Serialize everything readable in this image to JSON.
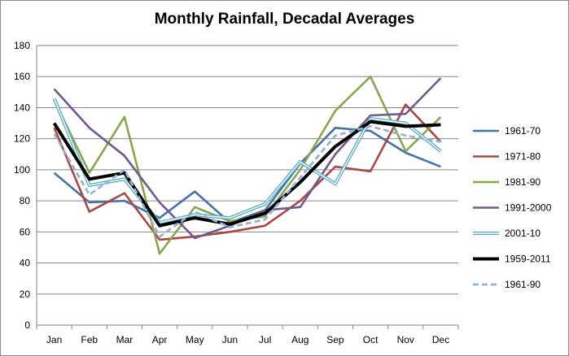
{
  "chart_data": {
    "type": "line",
    "title": "Monthly Rainfall, Decadal Averages",
    "xlabel": "",
    "ylabel": "",
    "categories": [
      "Jan",
      "Feb",
      "Mar",
      "Apr",
      "May",
      "Jun",
      "Jul",
      "Aug",
      "Sep",
      "Oct",
      "Nov",
      "Dec"
    ],
    "yticks": [
      "0",
      "20",
      "40",
      "60",
      "80",
      "100",
      "120",
      "140",
      "160",
      "180"
    ],
    "ylim": [
      0,
      180
    ],
    "grid": true,
    "legend_position": "right",
    "series": [
      {
        "name": "1961-70",
        "color": "#4572a7",
        "style": "solid",
        "values": [
          98,
          79,
          80,
          69,
          86,
          66,
          74,
          104,
          127,
          125,
          111,
          102
        ]
      },
      {
        "name": "1971-80",
        "color": "#aa4643",
        "style": "solid",
        "values": [
          127,
          73,
          85,
          55,
          57,
          60,
          64,
          80,
          102,
          99,
          142,
          118
        ]
      },
      {
        "name": "1981-90",
        "color": "#89a54e",
        "style": "solid",
        "values": [
          145,
          98,
          134,
          46,
          76,
          67,
          70,
          100,
          138,
          160,
          112,
          134
        ]
      },
      {
        "name": "1991-2000",
        "color": "#71588f",
        "style": "solid",
        "values": [
          152,
          127,
          109,
          79,
          56,
          64,
          74,
          76,
          110,
          135,
          136,
          159
        ]
      },
      {
        "name": "2001-10",
        "color": "#4bacc6",
        "style": "double",
        "values": [
          146,
          90,
          94,
          66,
          71,
          69,
          78,
          105,
          91,
          133,
          130,
          112
        ]
      },
      {
        "name": "1959-2011",
        "color": "#000000",
        "style": "thick",
        "values": [
          130,
          94,
          98,
          64,
          69,
          65,
          72,
          92,
          115,
          131,
          128,
          129
        ]
      },
      {
        "name": "1961-90",
        "color": "#95b3d7",
        "style": "dashed",
        "values": [
          123,
          84,
          100,
          57,
          73,
          63,
          68,
          95,
          122,
          128,
          122,
          118
        ]
      }
    ]
  }
}
